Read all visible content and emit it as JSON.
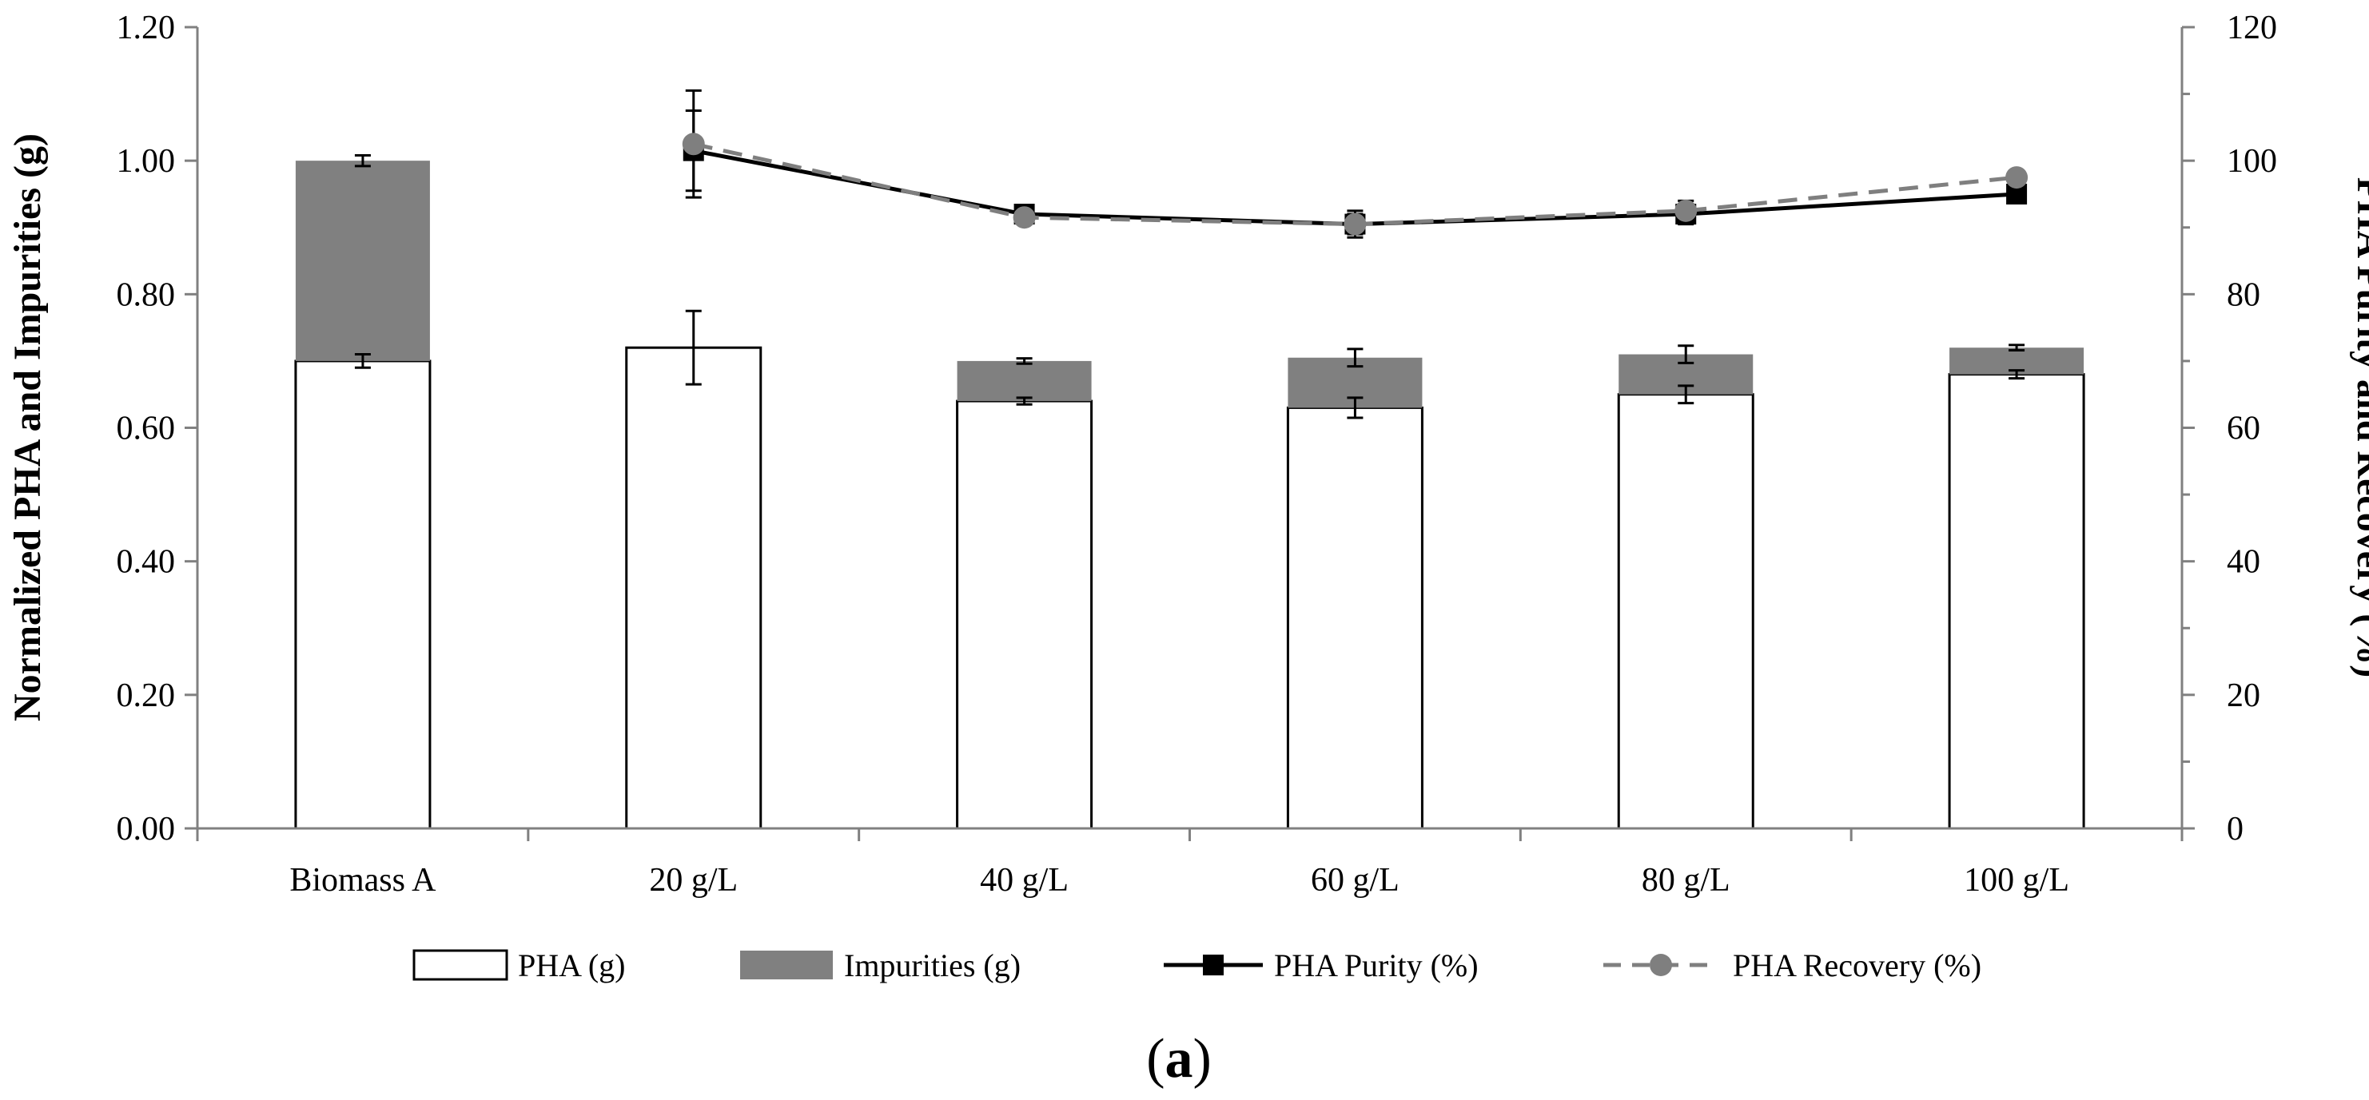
{
  "chart_data": {
    "type": "bar",
    "panel_label": "(a)",
    "categories": [
      "Biomass A",
      "20 g/L",
      "40 g/L",
      "60 g/L",
      "80 g/L",
      "100 g/L"
    ],
    "y_left": {
      "label": "Normalized PHA and Impurities (g)",
      "lim": [
        0,
        1.2
      ],
      "ticks": [
        "0.00",
        "0.20",
        "0.40",
        "0.60",
        "0.80",
        "1.00",
        "1.20"
      ]
    },
    "y_right": {
      "label": "PHA Purity and Recovery (%)",
      "lim": [
        0,
        120
      ],
      "ticks": [
        "0",
        "20",
        "40",
        "60",
        "80",
        "100",
        "120"
      ]
    },
    "stacked_bars": [
      {
        "name": "PHA (g)",
        "color": "#ffffff",
        "values": [
          0.7,
          0.72,
          0.64,
          0.63,
          0.65,
          0.68
        ],
        "errors": [
          0.01,
          0.055,
          0.005,
          0.015,
          0.013,
          0.006
        ]
      },
      {
        "name": "Impurities (g)",
        "color": "#808080",
        "values": [
          0.3,
          0.0,
          0.06,
          0.075,
          0.06,
          0.04
        ],
        "errors": [
          0.008,
          0.0,
          0.004,
          0.013,
          0.013,
          0.004
        ]
      }
    ],
    "lines": [
      {
        "name": "PHA Purity (%)",
        "color": "#000000",
        "style": "solid",
        "marker": "square",
        "values": [
          null,
          101.5,
          92,
          90.5,
          92,
          95
        ],
        "errors": [
          null,
          6,
          1,
          1.5,
          1.5,
          0.5
        ]
      },
      {
        "name": "PHA Recovery (%)",
        "color": "#7f7f7f",
        "style": "dashed",
        "marker": "circle",
        "values": [
          null,
          102.5,
          91.5,
          90.5,
          92.5,
          97.5
        ],
        "errors": [
          null,
          8,
          0.8,
          2,
          1.5,
          0.5
        ]
      }
    ],
    "legend_position": "bottom"
  }
}
